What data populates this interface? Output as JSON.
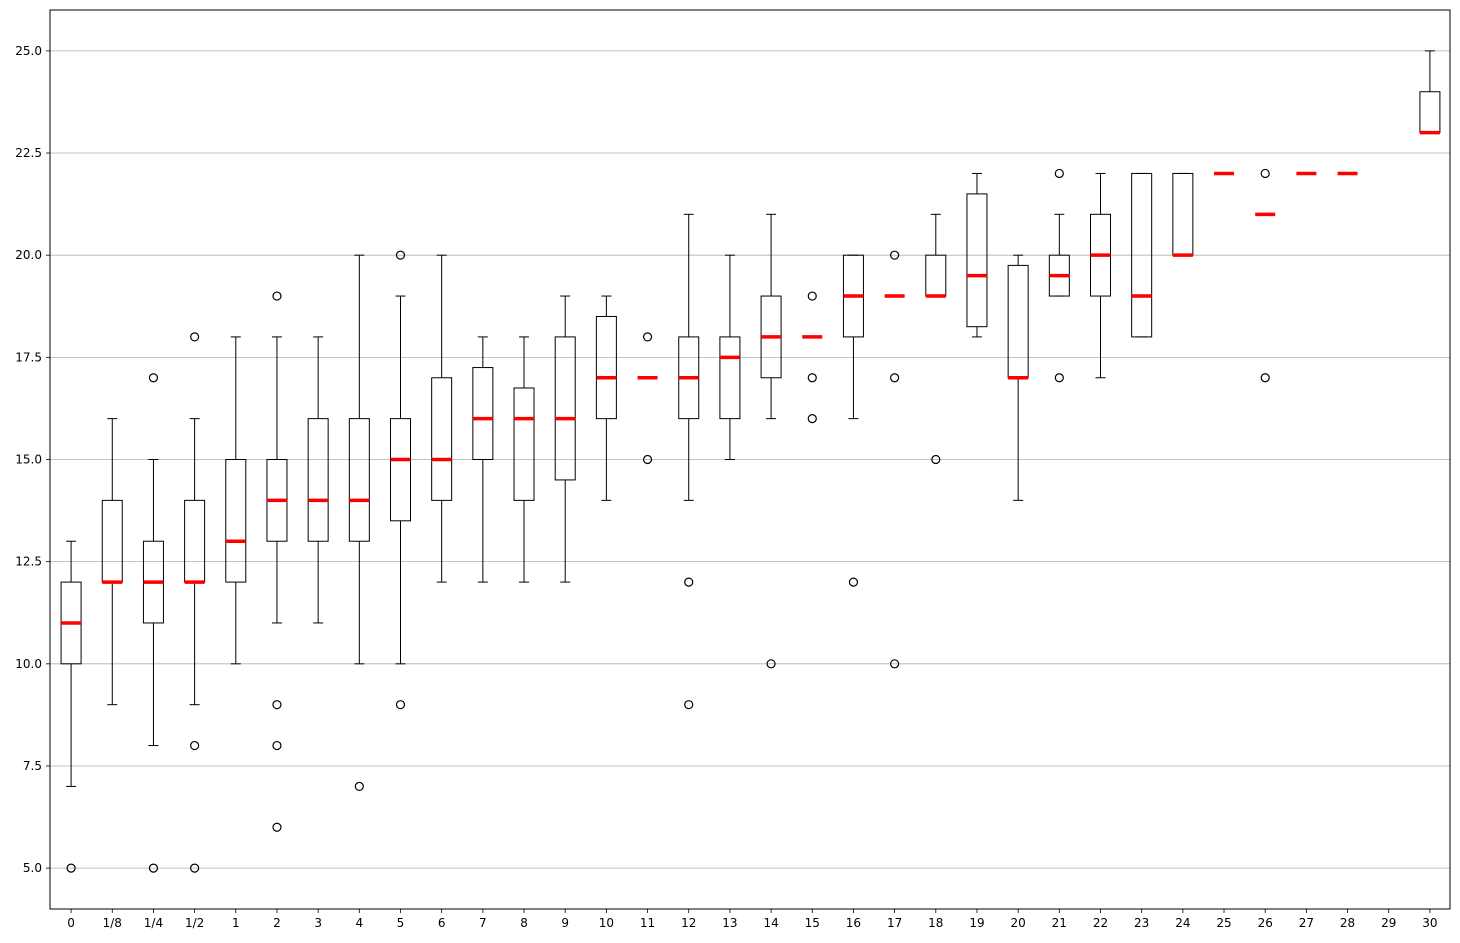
{
  "chart_data": {
    "type": "boxplot",
    "title": "",
    "xlabel": "",
    "ylabel": "",
    "ylim": [
      4.0,
      26.0
    ],
    "yticks": [
      "5.0",
      "7.5",
      "10.0",
      "12.5",
      "15.0",
      "17.5",
      "20.0",
      "22.5",
      "25.0"
    ],
    "grid": "horizontal",
    "colors": {
      "box": "#000000",
      "median": "#ff0000",
      "grid": "#b0b0b0"
    },
    "categories": [
      "0",
      "1/8",
      "1/4",
      "1/2",
      "1",
      "2",
      "3",
      "4",
      "5",
      "6",
      "7",
      "8",
      "9",
      "10",
      "11",
      "12",
      "13",
      "14",
      "15",
      "16",
      "17",
      "18",
      "19",
      "20",
      "21",
      "22",
      "23",
      "24",
      "25",
      "26",
      "27",
      "28",
      "29",
      "30"
    ],
    "boxes": [
      {
        "label": "0",
        "whislo": 7,
        "q1": 10,
        "med": 11,
        "q3": 12,
        "whishi": 13,
        "fliers": [
          5
        ]
      },
      {
        "label": "1/8",
        "whislo": 9,
        "q1": 12,
        "med": 12,
        "q3": 14,
        "whishi": 16,
        "fliers": []
      },
      {
        "label": "1/4",
        "whislo": 8,
        "q1": 11,
        "med": 12,
        "q3": 13,
        "whishi": 15,
        "fliers": [
          17,
          5
        ]
      },
      {
        "label": "1/2",
        "whislo": 9,
        "q1": 12,
        "med": 12,
        "q3": 14,
        "whishi": 16,
        "fliers": [
          18,
          8,
          5
        ]
      },
      {
        "label": "1",
        "whislo": 10,
        "q1": 12,
        "med": 13,
        "q3": 15,
        "whishi": 18,
        "fliers": []
      },
      {
        "label": "2",
        "whislo": 11,
        "q1": 13,
        "med": 14,
        "q3": 15,
        "whishi": 18,
        "fliers": [
          19,
          9,
          8,
          6
        ]
      },
      {
        "label": "3",
        "whislo": 11,
        "q1": 13,
        "med": 14,
        "q3": 16,
        "whishi": 18,
        "fliers": []
      },
      {
        "label": "4",
        "whislo": 10,
        "q1": 13,
        "med": 14,
        "q3": 16,
        "whishi": 20,
        "fliers": [
          7
        ]
      },
      {
        "label": "5",
        "whislo": 10,
        "q1": 13.5,
        "med": 15,
        "q3": 16,
        "whishi": 19,
        "fliers": [
          20,
          9
        ]
      },
      {
        "label": "6",
        "whislo": 12,
        "q1": 14,
        "med": 15,
        "q3": 17,
        "whishi": 20,
        "fliers": []
      },
      {
        "label": "7",
        "whislo": 12,
        "q1": 15,
        "med": 16,
        "q3": 17.25,
        "whishi": 18,
        "fliers": []
      },
      {
        "label": "8",
        "whislo": 12,
        "q1": 14,
        "med": 16,
        "q3": 16.75,
        "whishi": 18,
        "fliers": []
      },
      {
        "label": "9",
        "whislo": 12,
        "q1": 14.5,
        "med": 16,
        "q3": 18,
        "whishi": 19,
        "fliers": []
      },
      {
        "label": "10",
        "whislo": 14,
        "q1": 16,
        "med": 17,
        "q3": 18.5,
        "whishi": 19,
        "fliers": []
      },
      {
        "label": "11",
        "whislo": 17,
        "q1": 17,
        "med": 17,
        "q3": 17,
        "whishi": 17,
        "fliers": [
          18,
          15
        ]
      },
      {
        "label": "12",
        "whislo": 14,
        "q1": 16,
        "med": 17,
        "q3": 18,
        "whishi": 21,
        "fliers": [
          12,
          9
        ]
      },
      {
        "label": "13",
        "whislo": 15,
        "q1": 16,
        "med": 17.5,
        "q3": 18,
        "whishi": 20,
        "fliers": []
      },
      {
        "label": "14",
        "whislo": 16,
        "q1": 17,
        "med": 18,
        "q3": 19,
        "whishi": 21,
        "fliers": [
          10
        ]
      },
      {
        "label": "15",
        "whislo": 18,
        "q1": 18,
        "med": 18,
        "q3": 18,
        "whishi": 18,
        "fliers": [
          19,
          17,
          16
        ]
      },
      {
        "label": "16",
        "whislo": 16,
        "q1": 18,
        "med": 19,
        "q3": 20,
        "whishi": 20,
        "fliers": [
          12
        ]
      },
      {
        "label": "17",
        "whislo": 19,
        "q1": 19,
        "med": 19,
        "q3": 19,
        "whishi": 19,
        "fliers": [
          20,
          17,
          10
        ]
      },
      {
        "label": "18",
        "whislo": 19,
        "q1": 19,
        "med": 19,
        "q3": 20,
        "whishi": 21,
        "fliers": [
          15
        ]
      },
      {
        "label": "19",
        "whislo": 18,
        "q1": 18.25,
        "med": 19.5,
        "q3": 21.5,
        "whishi": 22,
        "fliers": []
      },
      {
        "label": "20",
        "whislo": 14,
        "q1": 17,
        "med": 17,
        "q3": 19.75,
        "whishi": 20,
        "fliers": []
      },
      {
        "label": "21",
        "whislo": 19,
        "q1": 19,
        "med": 19.5,
        "q3": 20,
        "whishi": 21,
        "fliers": [
          22,
          17
        ]
      },
      {
        "label": "22",
        "whislo": 17,
        "q1": 19,
        "med": 20,
        "q3": 21,
        "whishi": 22,
        "fliers": []
      },
      {
        "label": "23",
        "whislo": 18,
        "q1": 18,
        "med": 19,
        "q3": 22,
        "whishi": 22,
        "fliers": []
      },
      {
        "label": "24",
        "whislo": 20,
        "q1": 20,
        "med": 20,
        "q3": 22,
        "whishi": 22,
        "fliers": []
      },
      {
        "label": "25",
        "whislo": 22,
        "q1": 22,
        "med": 22,
        "q3": 22,
        "whishi": 22,
        "fliers": []
      },
      {
        "label": "26",
        "whislo": 21,
        "q1": 21,
        "med": 21,
        "q3": 21,
        "whishi": 21,
        "fliers": [
          22,
          17
        ]
      },
      {
        "label": "27",
        "whislo": 22,
        "q1": 22,
        "med": 22,
        "q3": 22,
        "whishi": 22,
        "fliers": []
      },
      {
        "label": "28",
        "whislo": 22,
        "q1": 22,
        "med": 22,
        "q3": 22,
        "whishi": 22,
        "fliers": []
      },
      {
        "label": "29",
        "whislo": null,
        "q1": null,
        "med": null,
        "q3": null,
        "whishi": null,
        "fliers": []
      },
      {
        "label": "30",
        "whislo": 23,
        "q1": 23,
        "med": 23,
        "q3": 24,
        "whishi": 25,
        "fliers": []
      }
    ]
  }
}
